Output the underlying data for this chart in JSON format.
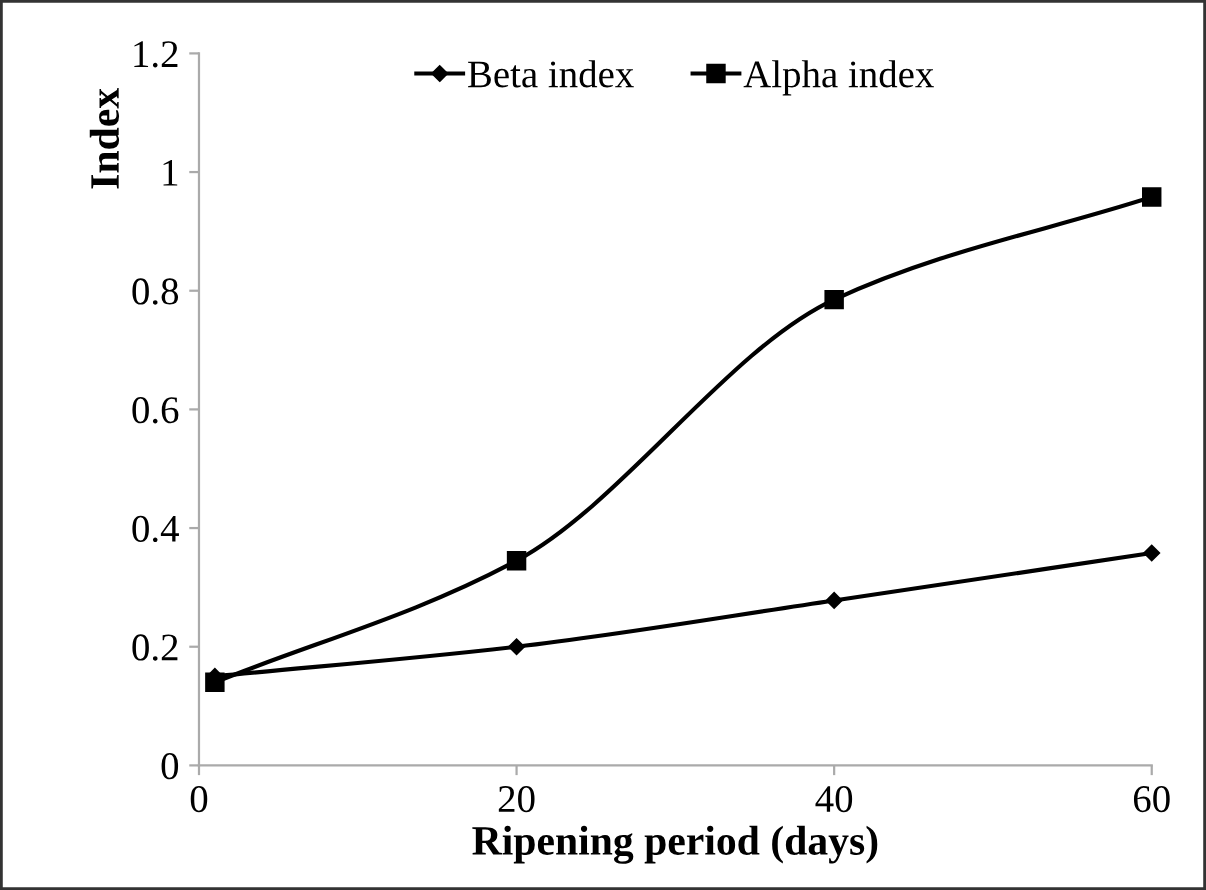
{
  "chart_data": {
    "type": "line",
    "xlabel": "Ripening period (days)",
    "ylabel": "Index",
    "x": [
      1,
      20,
      40,
      60
    ],
    "series": [
      {
        "name": "Beta index",
        "color": "#000000",
        "marker": "diamond",
        "values": [
          0.15,
          0.2,
          0.278,
          0.358
        ]
      },
      {
        "name": "Alpha index",
        "color": "#000000",
        "marker": "square",
        "values": [
          0.14,
          0.345,
          0.785,
          0.958
        ]
      }
    ],
    "xlim": [
      0,
      60
    ],
    "xticks": [
      0,
      20,
      40,
      60
    ],
    "ylim": [
      0,
      1.2
    ],
    "yticks": [
      0,
      0.2,
      0.4,
      0.6,
      0.8,
      1,
      1.2
    ],
    "grid": false,
    "legend": "top",
    "line_style": "solid"
  }
}
